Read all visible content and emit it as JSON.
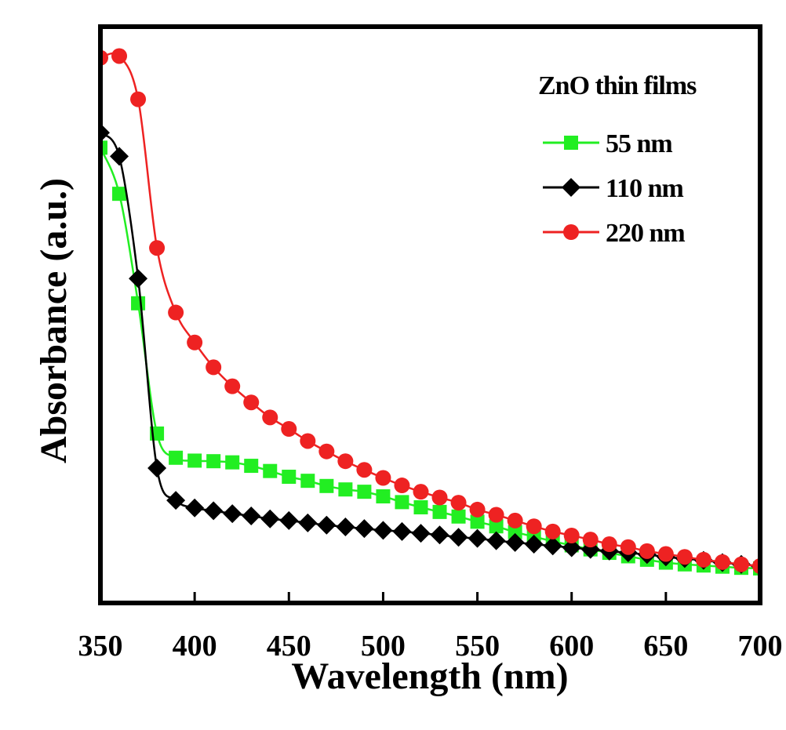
{
  "chart_data": {
    "type": "line",
    "xlabel": "Wavelength (nm)",
    "ylabel": "Absorbance (a.u.)",
    "xlim": [
      350,
      700
    ],
    "ylim": [
      0,
      1
    ],
    "xticks": [
      350,
      400,
      450,
      500,
      550,
      600,
      650,
      700
    ],
    "xtick_labels": [
      "350",
      "400",
      "450",
      "500",
      "550",
      "600",
      "650",
      "700"
    ],
    "yticks_visible": false,
    "grid": false,
    "legend": {
      "title": "ZnO thin films",
      "placement": "top-right"
    },
    "x": [
      350,
      360,
      370,
      380,
      390,
      400,
      410,
      420,
      430,
      440,
      450,
      460,
      470,
      480,
      490,
      500,
      510,
      520,
      530,
      540,
      550,
      560,
      570,
      580,
      590,
      600,
      610,
      620,
      630,
      640,
      650,
      660,
      670,
      680,
      690,
      700
    ],
    "series": [
      {
        "name": "55 nm",
        "color": "#22ee22",
        "marker": "square",
        "values": [
          0.79,
          0.71,
          0.52,
          0.294,
          0.252,
          0.247,
          0.246,
          0.244,
          0.238,
          0.229,
          0.219,
          0.212,
          0.203,
          0.197,
          0.193,
          0.185,
          0.175,
          0.166,
          0.158,
          0.15,
          0.141,
          0.133,
          0.123,
          0.115,
          0.107,
          0.1,
          0.093,
          0.087,
          0.081,
          0.075,
          0.07,
          0.067,
          0.065,
          0.063,
          0.061,
          0.06
        ]
      },
      {
        "name": "110 nm",
        "color": "#000000",
        "marker": "diamond",
        "values": [
          0.816,
          0.775,
          0.563,
          0.234,
          0.178,
          0.165,
          0.16,
          0.155,
          0.151,
          0.146,
          0.143,
          0.139,
          0.135,
          0.132,
          0.129,
          0.126,
          0.124,
          0.121,
          0.118,
          0.114,
          0.112,
          0.108,
          0.105,
          0.102,
          0.099,
          0.096,
          0.093,
          0.09,
          0.087,
          0.084,
          0.08,
          0.077,
          0.074,
          0.07,
          0.067,
          0.064
        ]
      },
      {
        "name": "220 nm",
        "color": "#ee2222",
        "marker": "circle",
        "values": [
          0.946,
          0.949,
          0.874,
          0.616,
          0.504,
          0.452,
          0.409,
          0.376,
          0.348,
          0.322,
          0.302,
          0.281,
          0.263,
          0.246,
          0.231,
          0.217,
          0.204,
          0.193,
          0.183,
          0.174,
          0.162,
          0.153,
          0.143,
          0.133,
          0.124,
          0.117,
          0.11,
          0.102,
          0.097,
          0.09,
          0.085,
          0.08,
          0.075,
          0.071,
          0.067,
          0.064
        ]
      }
    ]
  }
}
